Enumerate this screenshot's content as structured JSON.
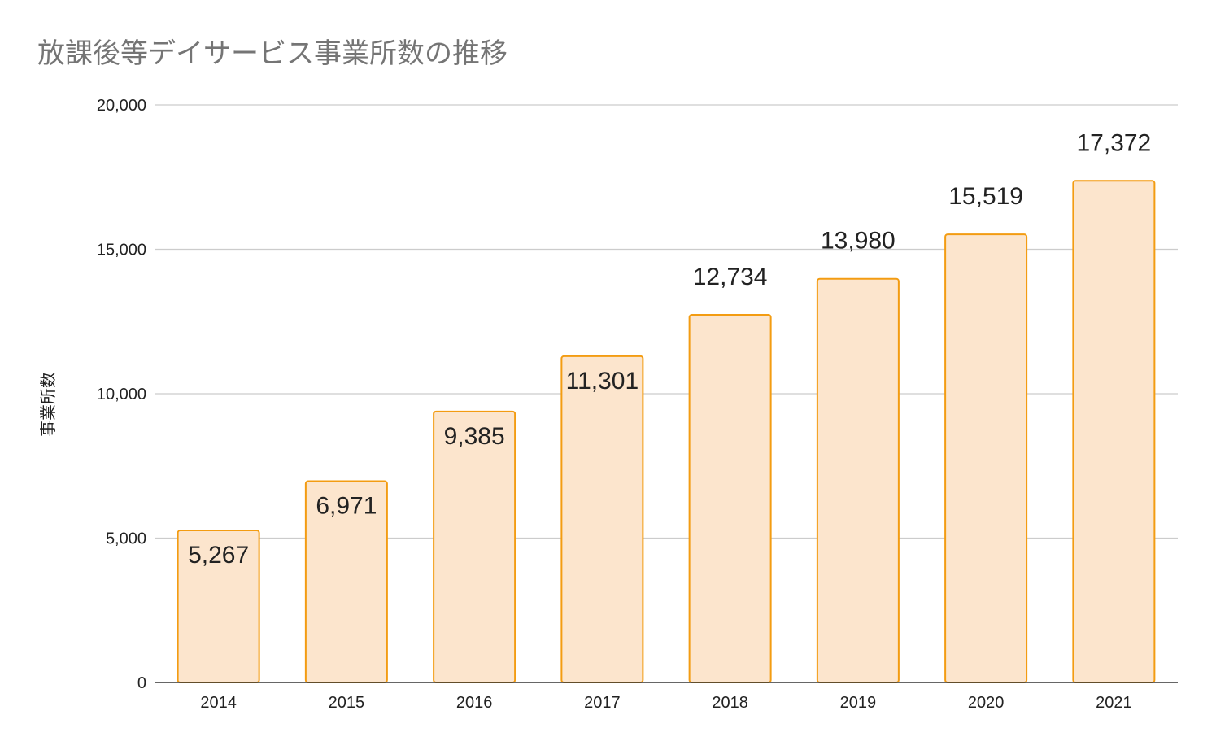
{
  "chart_data": {
    "type": "bar",
    "title": "放課後等デイサービス事業所数の推移",
    "xlabel": "",
    "ylabel": "事業所数",
    "categories": [
      "2014",
      "2015",
      "2016",
      "2017",
      "2018",
      "2019",
      "2020",
      "2021"
    ],
    "values": [
      5267,
      6971,
      9385,
      11301,
      12734,
      13980,
      15519,
      17372
    ],
    "data_labels": [
      "5,267",
      "6,971",
      "9,385",
      "11,301",
      "12,734",
      "13,980",
      "15,519",
      "17,372"
    ],
    "ylim": [
      0,
      20000
    ],
    "yticks": [
      0,
      5000,
      10000,
      15000,
      20000
    ],
    "ytick_labels": [
      "0",
      "5,000",
      "10,000",
      "15,000",
      "20,000"
    ],
    "grid": true,
    "legend": "none",
    "colors": {
      "bar_fill": "#fce5cd",
      "bar_stroke": "#f39c12"
    }
  }
}
